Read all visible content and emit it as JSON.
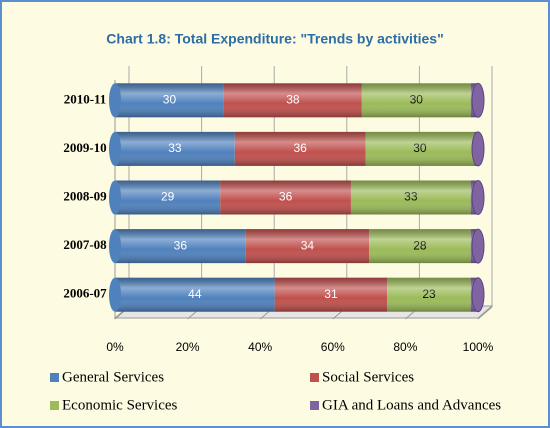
{
  "chart_data": {
    "type": "stacked_bar_horizontal",
    "title": "Chart 1.8:    Total Expenditure: \"Trends by activities\"",
    "categories": [
      "2010-11",
      "2009-10",
      "2008-09",
      "2007-08",
      "2006-07"
    ],
    "series": [
      {
        "name": "General Services",
        "color": "#4f81bd",
        "values": [
          30,
          33,
          29,
          36,
          44
        ]
      },
      {
        "name": "Social Services",
        "color": "#c0504d",
        "values": [
          38,
          36,
          36,
          34,
          31
        ]
      },
      {
        "name": "Economic Services",
        "color": "#9bbb59",
        "values": [
          30,
          30,
          33,
          28,
          23
        ]
      },
      {
        "name": "GIA and Loans and Advances",
        "color": "#8064a2",
        "values": [
          2,
          1,
          2,
          2,
          2
        ]
      }
    ],
    "xlim": [
      0,
      100
    ],
    "xticks": [
      {
        "value": 0,
        "label": "0%"
      },
      {
        "value": 20,
        "label": "20%"
      },
      {
        "value": 40,
        "label": "40%"
      },
      {
        "value": 60,
        "label": "60%"
      },
      {
        "value": 80,
        "label": "80%"
      },
      {
        "value": 100,
        "label": "100%"
      }
    ],
    "grid": true
  }
}
